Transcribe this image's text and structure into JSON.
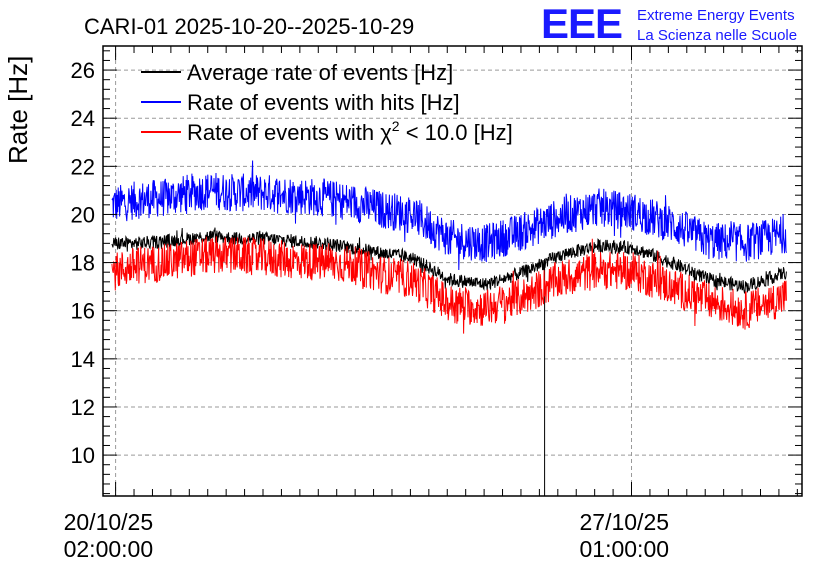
{
  "logo": {
    "mark": "EEE",
    "line1": "Extreme Energy Events",
    "line2": "La Scienza nelle Scuole"
  },
  "colors": {
    "average": "#000000",
    "hits": "#0000ff",
    "chi2": "#ff0000",
    "logo": "#1a1aff"
  },
  "chart_data": {
    "type": "line",
    "title": "CARI-01 2025-10-20--2025-10-29",
    "xlabel": "",
    "ylabel": "Rate [Hz]",
    "ylim": [
      8.3,
      27
    ],
    "yticks": [
      10,
      12,
      14,
      16,
      18,
      20,
      22,
      24,
      26
    ],
    "ytick_labels": [
      "10",
      "12",
      "14",
      "16",
      "18",
      "20",
      "22",
      "24",
      "26"
    ],
    "xlim": [
      -0.17,
      9.26
    ],
    "xticks": [
      0,
      6.96
    ],
    "xtick_labels": [
      {
        "date": "20/10/25",
        "time": "02:00:00"
      },
      {
        "date": "27/10/25",
        "time": "01:00:00"
      }
    ],
    "x_unit": "days since 20/10/25 02:00:00",
    "grid": true,
    "legend_position": "top-left",
    "legend": [
      {
        "label": "Average rate of events [Hz]",
        "color": "#000000"
      },
      {
        "label": "Rate of events with hits [Hz]",
        "color": "#0000ff"
      },
      {
        "label_prefix": "Rate of events with ",
        "label_symbol": "χ",
        "label_sup": "2",
        "label_suffix": " < 10.0 [Hz]",
        "color": "#ff0000"
      }
    ],
    "x": [
      -0.05,
      0.3,
      0.7,
      1.0,
      1.3,
      1.6,
      2.0,
      2.4,
      2.8,
      3.2,
      3.6,
      4.0,
      4.5,
      5.0,
      5.5,
      6.0,
      6.5,
      7.0,
      7.5,
      8.0,
      8.5,
      9.05
    ],
    "band_halfwidth": 0.8,
    "series": [
      {
        "name": "Rate of events with hits [Hz]",
        "color": "#0000ff",
        "values": [
          20.4,
          20.6,
          20.7,
          20.9,
          21.0,
          20.9,
          20.9,
          20.8,
          20.7,
          20.5,
          20.2,
          20.0,
          19.0,
          18.8,
          19.3,
          19.9,
          20.3,
          20.1,
          19.6,
          18.9,
          18.8,
          19.2
        ]
      },
      {
        "name": "Rate of events with chi2 < 10.0 [Hz]",
        "color": "#ff0000",
        "values": [
          17.6,
          17.9,
          18.0,
          18.2,
          18.3,
          18.3,
          18.2,
          18.1,
          18.0,
          17.9,
          17.5,
          17.3,
          16.3,
          16.1,
          16.6,
          17.3,
          17.7,
          17.6,
          17.0,
          16.4,
          16.0,
          16.6
        ]
      },
      {
        "name": "Average rate of events [Hz]",
        "color": "#000000",
        "values": [
          18.8,
          18.8,
          18.9,
          19.0,
          19.1,
          19.0,
          19.0,
          18.9,
          18.8,
          18.6,
          18.4,
          18.2,
          17.3,
          17.1,
          17.6,
          18.3,
          18.7,
          18.6,
          18.0,
          17.3,
          17.0,
          17.6
        ],
        "dip": {
          "x": 5.79,
          "min": 8.3
        }
      }
    ]
  }
}
